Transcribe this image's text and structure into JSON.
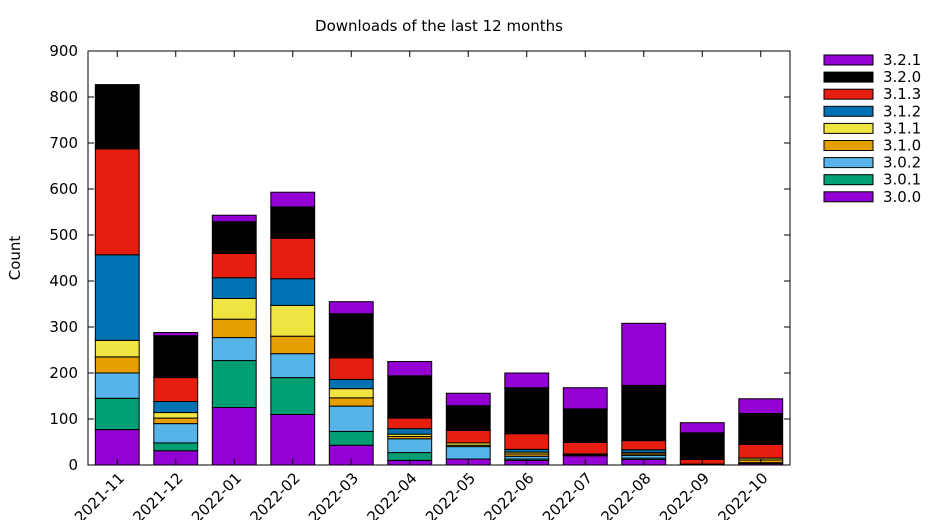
{
  "chart_data": {
    "type": "bar",
    "stacked": true,
    "title": "Downloads of the last 12 months",
    "xlabel": "",
    "ylabel": "Count",
    "ylim": [
      0,
      900
    ],
    "yticks": [
      0,
      100,
      200,
      300,
      400,
      500,
      600,
      700,
      800,
      900
    ],
    "legend_position": "outside-right",
    "categories": [
      "2021-11",
      "2021-12",
      "2022-01",
      "2022-02",
      "2022-03",
      "2022-04",
      "2022-05",
      "2022-06",
      "2022-07",
      "2022-08",
      "2022-09",
      "2022-10"
    ],
    "series": [
      {
        "name": "3.0.0",
        "color": "#9400d3",
        "values": [
          77,
          31,
          125,
          110,
          43,
          10,
          13,
          10,
          20,
          12,
          2,
          3
        ]
      },
      {
        "name": "3.0.1",
        "color": "#009e73",
        "values": [
          68,
          17,
          102,
          80,
          30,
          17,
          0,
          3,
          1,
          3,
          0,
          1
        ]
      },
      {
        "name": "3.0.2",
        "color": "#56b4e9",
        "values": [
          55,
          42,
          50,
          52,
          55,
          30,
          27,
          6,
          1,
          6,
          0,
          1
        ]
      },
      {
        "name": "3.1.0",
        "color": "#e69f00",
        "values": [
          35,
          12,
          40,
          38,
          18,
          5,
          3,
          5,
          1,
          3,
          0,
          6
        ]
      },
      {
        "name": "3.1.1",
        "color": "#f0e442",
        "values": [
          36,
          12,
          45,
          67,
          20,
          5,
          5,
          4,
          1,
          3,
          0,
          4
        ]
      },
      {
        "name": "3.1.2",
        "color": "#0072b2",
        "values": [
          186,
          24,
          45,
          58,
          20,
          12,
          0,
          6,
          0,
          6,
          0,
          0
        ]
      },
      {
        "name": "3.1.3",
        "color": "#e51e10",
        "values": [
          230,
          52,
          53,
          88,
          47,
          23,
          27,
          34,
          25,
          20,
          10,
          30
        ]
      },
      {
        "name": "3.2.0",
        "color": "#000000",
        "values": [
          140,
          91,
          69,
          68,
          96,
          92,
          54,
          100,
          73,
          120,
          58,
          67
        ]
      },
      {
        "name": "3.2.1",
        "color": "#9400d3",
        "values": [
          0,
          7,
          14,
          32,
          26,
          31,
          27,
          32,
          46,
          135,
          22,
          32
        ]
      }
    ]
  }
}
